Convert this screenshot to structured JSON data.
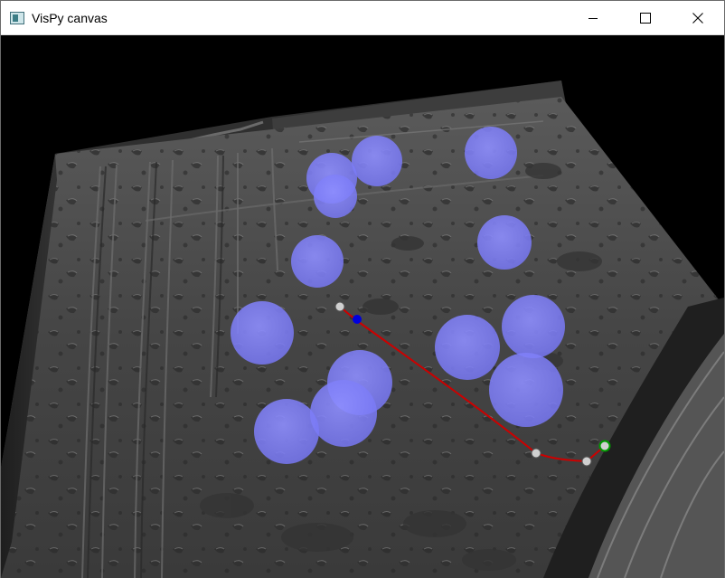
{
  "window": {
    "title": "VisPy canvas",
    "controls": {
      "minimize": "minimize-icon",
      "maximize": "maximize-icon",
      "close": "close-icon"
    }
  },
  "scene": {
    "background": "#000000",
    "terrain_color": "#4b4b4b",
    "sphere_color": "#8080ff",
    "path_color": "#cc0000",
    "waypoint_color": "#cccccc",
    "current_marker_color": "#0000dd",
    "goal_ring_color": "#009900"
  }
}
